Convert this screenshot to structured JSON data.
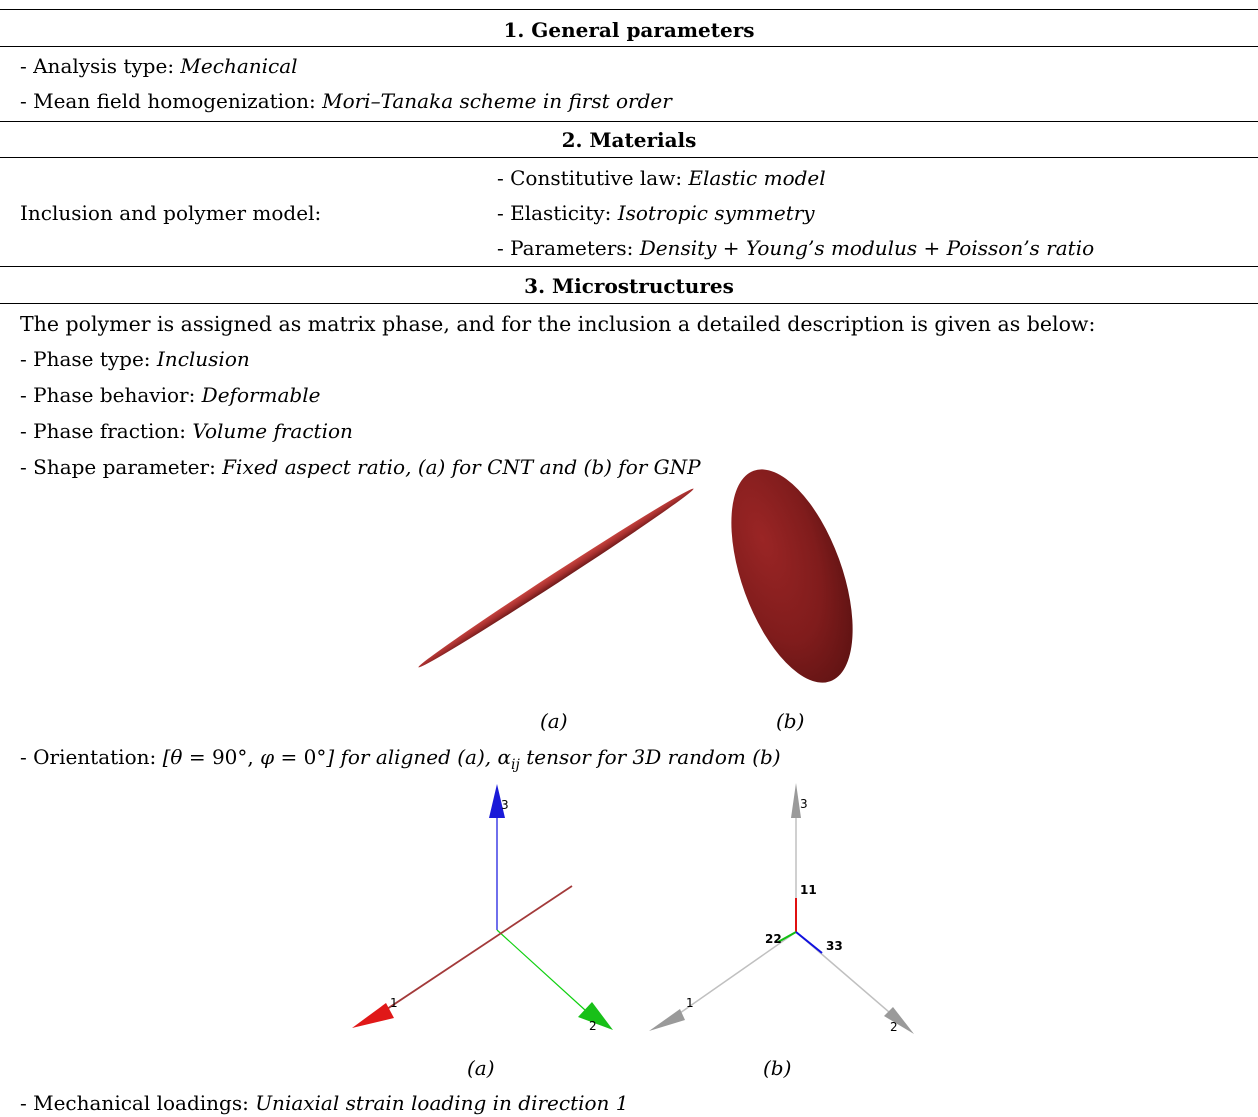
{
  "sections": {
    "general": {
      "header": "1. General parameters",
      "analysis_label": "- Analysis type: ",
      "analysis_value": "Mechanical",
      "homog_label": "- Mean field homogenization: ",
      "homog_value": "Mori–Tanaka scheme in first order"
    },
    "materials": {
      "header": "2. Materials",
      "model_label": "Inclusion and polymer model:",
      "law_label": "- Constitutive law: ",
      "law_value": "Elastic model",
      "elasticity_label": "- Elasticity: ",
      "elasticity_value": "Isotropic symmetry",
      "params_label": "- Parameters: ",
      "params_value": "Density + Young’s modulus + Poisson’s ratio"
    },
    "micro": {
      "header": "3. Microstructures",
      "intro": "The polymer is assigned as matrix phase, and for the inclusion a detailed description is given as below:",
      "phase_type_label": "- Phase type: ",
      "phase_type_value": "Inclusion",
      "behavior_label": "- Phase behavior: ",
      "behavior_value": "Deformable",
      "fraction_label": "- Phase fraction: ",
      "fraction_value": "Volume fraction",
      "shape_label": "- Shape parameter: ",
      "shape_value": "Fixed aspect ratio, (a) for CNT and (b) for GNP",
      "fig1_caption_a": "(a)",
      "fig1_caption_b": "(b)",
      "orientation_label": "- Orientation: ",
      "orientation_open": "[",
      "theta": "θ",
      "theta_value": " = 90°,  ",
      "phi": "φ",
      "phi_value": " = 0°",
      "orientation_mid": "] for aligned (a),  ",
      "alpha": "α",
      "alpha_sub": "ij",
      "orientation_end": "  tensor for 3D random (b)",
      "fig2_caption_a": "(a)",
      "fig2_caption_b": "(b)",
      "loading_label": "- Mechanical loadings: ",
      "loading_value": "Uniaxial strain loading in direction 1"
    }
  },
  "figures": {
    "aligned_axes": {
      "axis1": "1",
      "axis2": "2",
      "axis3": "3"
    },
    "random_axes": {
      "axis1": "1",
      "axis2": "2",
      "axis3": "3",
      "a11": "11",
      "a22": "22",
      "a33": "33"
    }
  },
  "colors": {
    "inclusion": "#a8302f",
    "axis_red": "#e01010",
    "axis_green": "#10c010",
    "axis_blue": "#1010e0",
    "axis_gray": "#b8b8b8"
  }
}
